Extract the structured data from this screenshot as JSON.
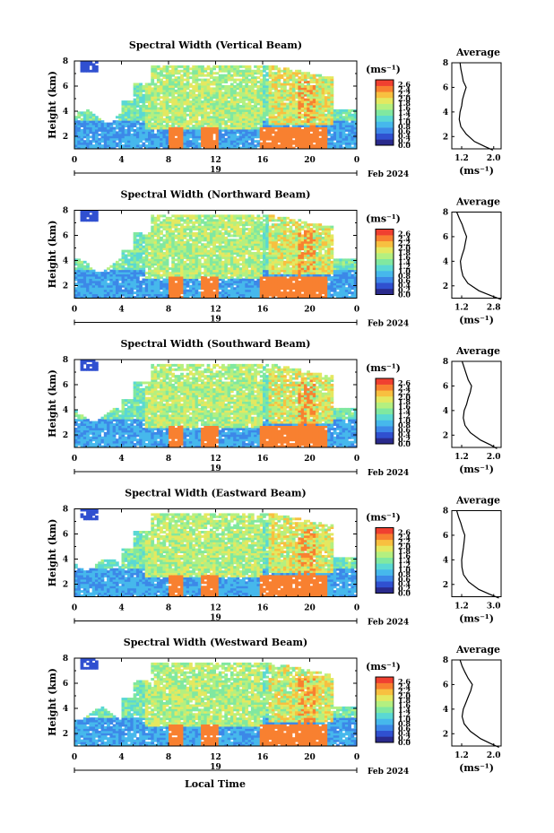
{
  "figure": {
    "xlabel": "Local Time",
    "date_label": "Feb 2024",
    "day_label": "19",
    "unit_label": "(ms⁻¹)",
    "avg_title": "Average",
    "ylabel": "Height (km)",
    "colors": {
      "scale": [
        "#2a2a8c",
        "#3050d0",
        "#3c88e8",
        "#46b8ec",
        "#5ad8d4",
        "#80e8a0",
        "#b4f080",
        "#e4e860",
        "#f8c040",
        "#f88030",
        "#f04030"
      ]
    }
  },
  "chart_data": [
    {
      "type": "heatmap",
      "title": "Spectral Width (Vertical Beam)",
      "xlabel": "",
      "ylabel": "Height (km)",
      "x_ticks": [
        "0",
        "4",
        "8",
        "12",
        "16",
        "20",
        "0"
      ],
      "y_ticks": [
        "2",
        "4",
        "6",
        "8"
      ],
      "xlim": [
        0,
        24
      ],
      "ylim": [
        1,
        8
      ],
      "colorbar": {
        "unit": "(ms⁻¹)",
        "ticks": [
          "2.6",
          "2.4",
          "2.2",
          "2.0",
          "1.8",
          "1.6",
          "1.4",
          "1.2",
          "1.0",
          "0.8",
          "0.6",
          "0.4",
          "0.2",
          "0.0"
        ],
        "range": [
          0.0,
          2.8
        ]
      },
      "average": {
        "title": "Average",
        "xlabel": "(ms⁻¹)",
        "x_ticks": [
          "1.2",
          "2.0"
        ],
        "y_ticks": [
          "2",
          "4",
          "6",
          "8"
        ],
        "xlim": [
          1.0,
          2.2
        ],
        "ylim": [
          1,
          8
        ],
        "profile": [
          [
            0.9,
            2.0
          ],
          [
            1.2,
            1.8
          ],
          [
            1.6,
            1.55
          ],
          [
            2.2,
            1.35
          ],
          [
            2.8,
            1.22
          ],
          [
            3.4,
            1.18
          ],
          [
            4.0,
            1.2
          ],
          [
            4.5,
            1.24
          ],
          [
            5.0,
            1.26
          ],
          [
            5.5,
            1.3
          ],
          [
            6.0,
            1.35
          ],
          [
            6.5,
            1.28
          ],
          [
            7.0,
            1.25
          ],
          [
            7.5,
            1.22
          ],
          [
            8.0,
            1.2
          ]
        ]
      },
      "date": "Feb 2024",
      "day": "19"
    },
    {
      "type": "heatmap",
      "title": "Spectral Width (Northward Beam)",
      "xlabel": "",
      "ylabel": "Height (km)",
      "x_ticks": [
        "0",
        "4",
        "8",
        "12",
        "16",
        "20",
        "0"
      ],
      "y_ticks": [
        "2",
        "4",
        "6",
        "8"
      ],
      "xlim": [
        0,
        24
      ],
      "ylim": [
        1,
        8
      ],
      "colorbar": {
        "unit": "(ms⁻¹)",
        "ticks": [
          "2.6",
          "2.4",
          "2.2",
          "2.0",
          "1.8",
          "1.6",
          "1.4",
          "1.2",
          "1.0",
          "0.8",
          "0.6",
          "0.4",
          "0.2",
          "0.0"
        ],
        "range": [
          0.0,
          2.8
        ]
      },
      "average": {
        "title": "Average",
        "xlabel": "(ms⁻¹)",
        "x_ticks": [
          "1.2",
          "2.8"
        ],
        "y_ticks": [
          "2",
          "4",
          "6",
          "8"
        ],
        "xlim": [
          1.0,
          3.0
        ],
        "ylim": [
          1,
          8
        ],
        "profile": [
          [
            0.9,
            3.0
          ],
          [
            1.2,
            2.6
          ],
          [
            1.6,
            2.1
          ],
          [
            2.2,
            1.65
          ],
          [
            2.8,
            1.45
          ],
          [
            3.4,
            1.38
          ],
          [
            4.0,
            1.35
          ],
          [
            4.5,
            1.42
          ],
          [
            5.0,
            1.5
          ],
          [
            5.5,
            1.55
          ],
          [
            6.0,
            1.6
          ],
          [
            6.5,
            1.5
          ],
          [
            7.0,
            1.42
          ],
          [
            7.5,
            1.3
          ],
          [
            8.0,
            1.2
          ]
        ]
      },
      "date": "Feb 2024",
      "day": "19"
    },
    {
      "type": "heatmap",
      "title": "Spectral Width (Southward Beam)",
      "xlabel": "",
      "ylabel": "Height (km)",
      "x_ticks": [
        "0",
        "4",
        "8",
        "12",
        "16",
        "20",
        "0"
      ],
      "y_ticks": [
        "2",
        "4",
        "6",
        "8"
      ],
      "xlim": [
        0,
        24
      ],
      "ylim": [
        1,
        8
      ],
      "colorbar": {
        "unit": "(ms⁻¹)",
        "ticks": [
          "2.6",
          "2.4",
          "2.2",
          "2.0",
          "1.8",
          "1.6",
          "1.4",
          "1.2",
          "1.0",
          "0.8",
          "0.6",
          "0.4",
          "0.2",
          "0.0"
        ],
        "range": [
          0.0,
          2.8
        ]
      },
      "average": {
        "title": "Average",
        "xlabel": "(ms⁻¹)",
        "x_ticks": [
          "1.2",
          "2.0"
        ],
        "y_ticks": [
          "2",
          "4",
          "6",
          "8"
        ],
        "xlim": [
          1.0,
          2.2
        ],
        "ylim": [
          1,
          8
        ],
        "profile": [
          [
            0.9,
            2.1
          ],
          [
            1.2,
            1.95
          ],
          [
            1.6,
            1.7
          ],
          [
            2.2,
            1.45
          ],
          [
            2.8,
            1.32
          ],
          [
            3.4,
            1.28
          ],
          [
            4.0,
            1.3
          ],
          [
            4.5,
            1.36
          ],
          [
            5.0,
            1.4
          ],
          [
            5.5,
            1.45
          ],
          [
            6.0,
            1.48
          ],
          [
            6.5,
            1.4
          ],
          [
            7.0,
            1.35
          ],
          [
            7.5,
            1.3
          ],
          [
            8.0,
            1.25
          ]
        ]
      },
      "date": "Feb 2024",
      "day": "19"
    },
    {
      "type": "heatmap",
      "title": "Spectral Width (Eastward Beam)",
      "xlabel": "",
      "ylabel": "Height (km)",
      "x_ticks": [
        "0",
        "4",
        "8",
        "12",
        "16",
        "20",
        "0"
      ],
      "y_ticks": [
        "2",
        "4",
        "6",
        "8"
      ],
      "xlim": [
        0,
        24
      ],
      "ylim": [
        1,
        8
      ],
      "colorbar": {
        "unit": "(ms⁻¹)",
        "ticks": [
          "2.6",
          "2.4",
          "2.2",
          "2.0",
          "1.8",
          "1.6",
          "1.4",
          "1.2",
          "1.0",
          "0.8",
          "0.6",
          "0.4",
          "0.2",
          "0.0"
        ],
        "range": [
          0.0,
          2.8
        ]
      },
      "average": {
        "title": "Average",
        "xlabel": "(ms⁻¹)",
        "x_ticks": [
          "1.2",
          "3.0"
        ],
        "y_ticks": [
          "2",
          "4",
          "6",
          "8"
        ],
        "xlim": [
          1.0,
          3.2
        ],
        "ylim": [
          1,
          8
        ],
        "profile": [
          [
            0.9,
            3.1
          ],
          [
            1.2,
            2.7
          ],
          [
            1.6,
            2.2
          ],
          [
            2.2,
            1.75
          ],
          [
            2.8,
            1.52
          ],
          [
            3.4,
            1.45
          ],
          [
            4.0,
            1.44
          ],
          [
            4.5,
            1.48
          ],
          [
            5.0,
            1.52
          ],
          [
            5.5,
            1.55
          ],
          [
            6.0,
            1.58
          ],
          [
            6.5,
            1.48
          ],
          [
            7.0,
            1.4
          ],
          [
            7.5,
            1.3
          ],
          [
            8.0,
            1.22
          ]
        ]
      },
      "date": "Feb 2024",
      "day": "19"
    },
    {
      "type": "heatmap",
      "title": "Spectral Width (Westward Beam)",
      "xlabel": "Local Time",
      "ylabel": "Height (km)",
      "x_ticks": [
        "0",
        "4",
        "8",
        "12",
        "16",
        "20",
        "0"
      ],
      "y_ticks": [
        "2",
        "4",
        "6",
        "8"
      ],
      "xlim": [
        0,
        24
      ],
      "ylim": [
        1,
        8
      ],
      "colorbar": {
        "unit": "(ms⁻¹)",
        "ticks": [
          "2.6",
          "2.4",
          "2.2",
          "2.0",
          "1.8",
          "1.6",
          "1.4",
          "1.2",
          "1.0",
          "0.8",
          "0.6",
          "0.4",
          "0.2",
          "0.0"
        ],
        "range": [
          0.0,
          2.8
        ]
      },
      "average": {
        "title": "Average",
        "xlabel": "(ms⁻¹)",
        "x_ticks": [
          "1.2",
          "2.0"
        ],
        "y_ticks": [
          "2",
          "4",
          "6",
          "8"
        ],
        "xlim": [
          1.0,
          2.2
        ],
        "ylim": [
          1,
          8
        ],
        "profile": [
          [
            0.9,
            2.15
          ],
          [
            1.2,
            1.95
          ],
          [
            1.6,
            1.7
          ],
          [
            2.2,
            1.45
          ],
          [
            2.8,
            1.3
          ],
          [
            3.4,
            1.25
          ],
          [
            4.0,
            1.28
          ],
          [
            4.5,
            1.34
          ],
          [
            5.0,
            1.4
          ],
          [
            5.5,
            1.46
          ],
          [
            6.0,
            1.5
          ],
          [
            6.5,
            1.4
          ],
          [
            7.0,
            1.32
          ],
          [
            7.5,
            1.25
          ],
          [
            8.0,
            1.2
          ]
        ]
      },
      "date": "Feb 2024",
      "day": "19"
    }
  ]
}
